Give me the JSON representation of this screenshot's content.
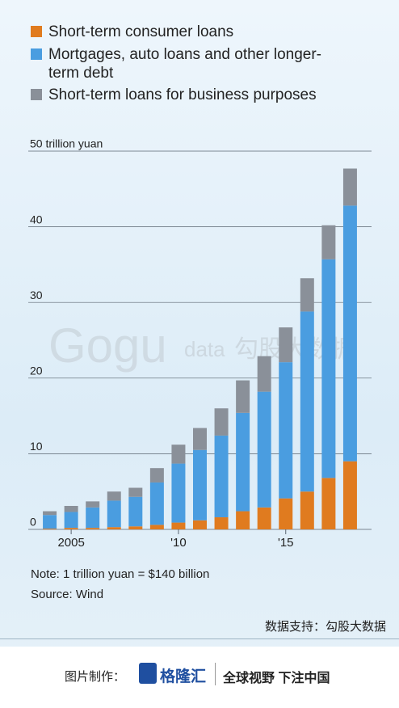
{
  "chart_data": {
    "type": "bar",
    "stacked": true,
    "x": [
      2004,
      2005,
      2006,
      2007,
      2008,
      2009,
      2010,
      2011,
      2012,
      2013,
      2014,
      2015,
      2016,
      2017,
      2018
    ],
    "series": [
      {
        "name": "Short-term consumer loans",
        "color": "#e07b1f",
        "values": [
          0.1,
          0.2,
          0.2,
          0.3,
          0.4,
          0.6,
          0.9,
          1.2,
          1.6,
          2.4,
          2.9,
          4.1,
          5.0,
          6.8,
          9.0
        ]
      },
      {
        "name": "Mortgages, auto loans and other longer-term debt",
        "color": "#4a9de0",
        "values": [
          1.8,
          2.1,
          2.7,
          3.5,
          3.9,
          5.6,
          7.8,
          9.3,
          10.8,
          13.0,
          15.3,
          18.0,
          23.8,
          28.9,
          33.8
        ]
      },
      {
        "name": "Short-term loans for business purposes",
        "color": "#8a9099",
        "values": [
          0.5,
          0.8,
          0.8,
          1.2,
          1.2,
          1.9,
          2.5,
          2.9,
          3.6,
          4.3,
          4.7,
          4.6,
          4.4,
          4.5,
          4.9
        ]
      }
    ],
    "xlim": [
      2003,
      2019
    ],
    "xticks": [
      {
        "value": 2005,
        "label": "2005"
      },
      {
        "value": 2010,
        "label": "'10"
      },
      {
        "value": 2015,
        "label": "'15"
      }
    ],
    "ylim": [
      0,
      50
    ],
    "yticks": [
      0,
      10,
      20,
      30,
      40,
      {
        "value": 50,
        "label": "50 trillion yuan"
      }
    ],
    "grid": true,
    "note": "Note: 1 trillion yuan = $140 billion",
    "source": "Source: Wind"
  },
  "watermark": [
    "Gogu",
    "data",
    "勾股大数据"
  ],
  "footer": {
    "support": "数据支持：勾股大数据",
    "made_by": "图片制作：",
    "brand": "格隆汇",
    "slogan": "全球视野 下注中国"
  }
}
